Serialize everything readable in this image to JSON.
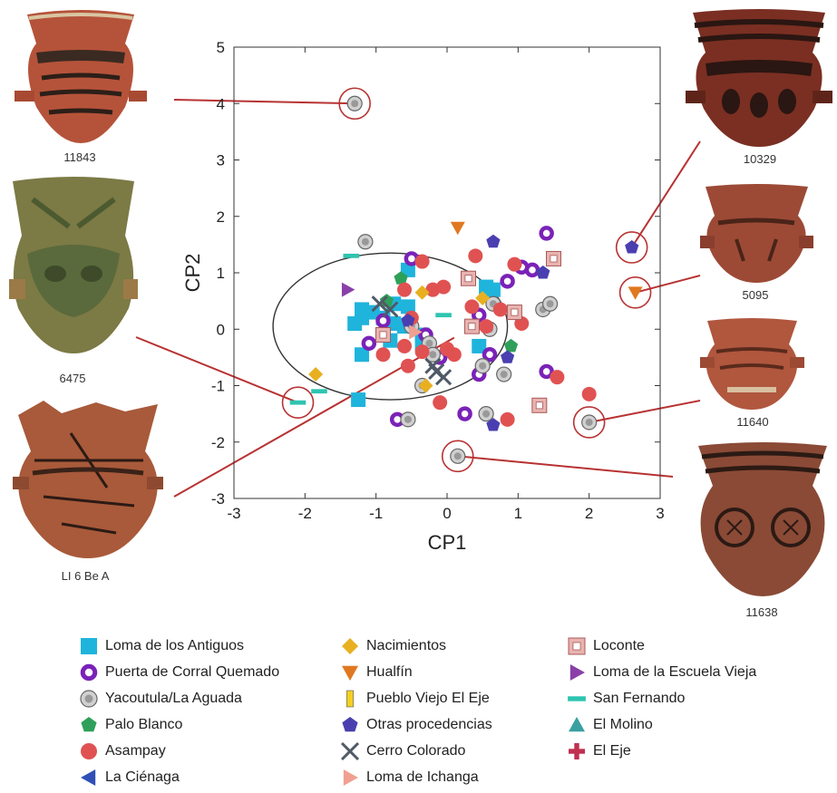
{
  "chart_data": {
    "type": "scatter",
    "xlabel": "CP1",
    "ylabel": "CP2",
    "xlim": [
      -3,
      3
    ],
    "ylim": [
      -3,
      5
    ],
    "xticks": [
      "-3",
      "-2",
      "-1",
      "0",
      "1",
      "2",
      "3"
    ],
    "yticks": [
      "-3",
      "-2",
      "-1",
      "0",
      "1",
      "2",
      "3",
      "4",
      "5"
    ],
    "grid": false,
    "legend_position": "bottom",
    "ellipse": {
      "center": [
        -0.8,
        0.05
      ],
      "rx": 1.65,
      "ry": 1.3
    },
    "series": [
      {
        "name": "Loma de los Antiguos",
        "marker": "square",
        "color": "#1fb4dc",
        "points": [
          [
            -1.2,
            0.2
          ],
          [
            -1.3,
            0.1
          ],
          [
            -1.05,
            0.3
          ],
          [
            -0.9,
            0.2
          ],
          [
            -0.75,
            0.1
          ],
          [
            -1.2,
            0.35
          ],
          [
            -0.55,
            0.4
          ],
          [
            -0.6,
            0.05
          ],
          [
            -0.75,
            0.45
          ],
          [
            -0.55,
            1.05
          ],
          [
            -0.35,
            -0.1
          ],
          [
            -1.2,
            -0.45
          ],
          [
            -0.8,
            -0.2
          ],
          [
            -1.25,
            -1.25
          ],
          [
            -0.35,
            -0.25
          ],
          [
            0.65,
            0.7
          ],
          [
            0.55,
            0.75
          ],
          [
            0.45,
            -0.3
          ]
        ]
      },
      {
        "name": "Puerta de Corral Quemado",
        "marker": "ring",
        "color": "#7a22b8",
        "points": [
          [
            -0.5,
            1.25
          ],
          [
            -0.9,
            0.15
          ],
          [
            -1.1,
            -0.25
          ],
          [
            -0.3,
            -0.1
          ],
          [
            -0.1,
            -0.5
          ],
          [
            -0.7,
            -1.6
          ],
          [
            0.25,
            -1.5
          ],
          [
            0.45,
            0.25
          ],
          [
            0.45,
            -0.8
          ],
          [
            0.6,
            -0.45
          ],
          [
            0.85,
            0.85
          ],
          [
            1.05,
            1.1
          ],
          [
            1.2,
            1.05
          ],
          [
            1.4,
            1.7
          ],
          [
            1.4,
            -0.75
          ]
        ]
      },
      {
        "name": "Yacoutula/La Aguada",
        "marker": "graydot",
        "color": "#999999",
        "points": [
          [
            -1.3,
            4.0
          ],
          [
            -1.15,
            1.55
          ],
          [
            -0.5,
            0.05
          ],
          [
            -0.25,
            -0.25
          ],
          [
            -0.2,
            -0.45
          ],
          [
            -0.35,
            -1.0
          ],
          [
            -0.55,
            -1.6
          ],
          [
            0.5,
            -0.65
          ],
          [
            0.55,
            -1.5
          ],
          [
            0.65,
            0.45
          ],
          [
            0.6,
            0.0
          ],
          [
            0.8,
            -0.8
          ],
          [
            1.35,
            0.35
          ],
          [
            1.45,
            0.45
          ],
          [
            2.0,
            -1.65
          ],
          [
            0.15,
            -2.25
          ]
        ]
      },
      {
        "name": "Palo Blanco",
        "marker": "pentagon",
        "color": "#2ea05a",
        "points": [
          [
            -0.65,
            0.9
          ],
          [
            0.9,
            -0.3
          ],
          [
            -0.85,
            0.5
          ]
        ]
      },
      {
        "name": "Asampay",
        "marker": "circle",
        "color": "#e05252",
        "points": [
          [
            -0.35,
            1.2
          ],
          [
            -0.6,
            0.7
          ],
          [
            -0.2,
            0.7
          ],
          [
            -0.5,
            0.2
          ],
          [
            -0.6,
            -0.3
          ],
          [
            -0.9,
            -0.45
          ],
          [
            -0.55,
            -0.65
          ],
          [
            -0.05,
            0.75
          ],
          [
            0.0,
            -0.35
          ],
          [
            -0.1,
            -1.3
          ],
          [
            0.1,
            -0.45
          ],
          [
            0.4,
            1.3
          ],
          [
            0.35,
            0.4
          ],
          [
            0.55,
            0.05
          ],
          [
            0.75,
            0.35
          ],
          [
            0.95,
            1.15
          ],
          [
            1.05,
            0.1
          ],
          [
            0.85,
            -1.6
          ],
          [
            1.55,
            -0.85
          ],
          [
            2.0,
            -1.15
          ],
          [
            -0.35,
            -0.4
          ]
        ]
      },
      {
        "name": "La Ciénaga",
        "marker": "tri-left",
        "color": "#3050b8",
        "points": []
      },
      {
        "name": "Nacimientos",
        "marker": "diamond",
        "color": "#e8b020",
        "points": [
          [
            -1.85,
            -0.8
          ],
          [
            -0.35,
            0.65
          ],
          [
            -0.3,
            -1.0
          ],
          [
            0.5,
            0.55
          ]
        ]
      },
      {
        "name": "Hualfín",
        "marker": "tri-down",
        "color": "#e07820",
        "points": [
          [
            0.15,
            1.8
          ],
          [
            2.65,
            0.65
          ]
        ]
      },
      {
        "name": "Pueblo Viejo El Eje",
        "marker": "bar",
        "color": "#f5d020",
        "points": []
      },
      {
        "name": "Otras procedencias",
        "marker": "pentagon",
        "color": "#4a3fb0",
        "points": [
          [
            0.65,
            1.55
          ],
          [
            1.35,
            1.0
          ],
          [
            0.85,
            -0.5
          ],
          [
            0.65,
            -1.7
          ],
          [
            2.6,
            1.45
          ],
          [
            -0.55,
            0.15
          ]
        ]
      },
      {
        "name": "Cerro Colorado",
        "marker": "x",
        "color": "#505a66",
        "points": [
          [
            -0.95,
            0.45
          ],
          [
            -0.8,
            0.35
          ],
          [
            -0.15,
            -0.75
          ],
          [
            -0.05,
            -0.85
          ],
          [
            -0.2,
            -0.65
          ]
        ]
      },
      {
        "name": "Loma de Ichanga",
        "marker": "tri-right",
        "color": "#f0a090",
        "points": [
          [
            -0.45,
            -0.05
          ]
        ]
      },
      {
        "name": "Loconte",
        "marker": "sqring",
        "color": "#d07070",
        "points": [
          [
            0.3,
            0.9
          ],
          [
            1.5,
            1.25
          ],
          [
            0.95,
            0.3
          ],
          [
            1.3,
            -1.35
          ],
          [
            0.35,
            0.05
          ],
          [
            -0.9,
            -0.1
          ]
        ]
      },
      {
        "name": "Loma de la Escuela Vieja",
        "marker": "tri-right",
        "color": "#8a40a8",
        "points": [
          [
            -1.4,
            0.7
          ]
        ]
      },
      {
        "name": "San Fernando",
        "marker": "dash",
        "color": "#2ec4b0",
        "points": [
          [
            -1.35,
            1.3
          ],
          [
            -2.1,
            -1.3
          ],
          [
            -1.8,
            -1.1
          ],
          [
            -0.05,
            0.25
          ]
        ]
      },
      {
        "name": "El Molino",
        "marker": "tri-up",
        "color": "#3aa0a0",
        "points": []
      },
      {
        "name": "El Eje",
        "marker": "plus",
        "color": "#c03050",
        "points": []
      }
    ],
    "callouts": [
      {
        "label": "11843",
        "point": [
          -1.3,
          4.0
        ]
      },
      {
        "label": "10329",
        "point": [
          2.6,
          1.45
        ]
      },
      {
        "label": "5095",
        "point": [
          2.65,
          0.65
        ]
      },
      {
        "label": "6475",
        "point": [
          -2.1,
          -1.3
        ]
      },
      {
        "label": "11640",
        "point": [
          2.0,
          -1.65
        ]
      },
      {
        "label": "LI 6 Be A",
        "point": [
          0.1,
          -0.15
        ]
      },
      {
        "label": "11638",
        "point": [
          0.15,
          -2.25
        ]
      }
    ]
  },
  "colors": {
    "callout_line": "#b83232",
    "axis": "#333333",
    "ellipse": "#333333"
  },
  "pot_labels": {
    "p11843": "11843",
    "p10329": "10329",
    "p6475": "6475",
    "p5095": "5095",
    "p11640": "11640",
    "pLI6": "LI 6 Be A",
    "p11638": "11638"
  }
}
